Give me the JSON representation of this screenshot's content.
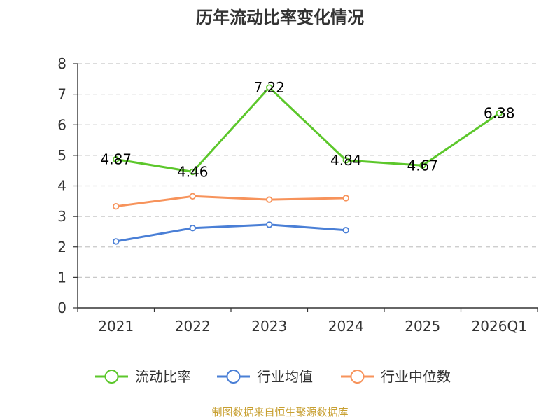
{
  "chart_data": {
    "type": "line",
    "title": "历年流动比率变化情况",
    "categories": [
      "2021",
      "2022",
      "2023",
      "2024",
      "2025",
      "2026Q1"
    ],
    "ylim": [
      0,
      8
    ],
    "yticks": [
      0,
      1,
      2,
      3,
      4,
      5,
      6,
      7,
      8
    ],
    "grid": true,
    "legend_position": "bottom",
    "series": [
      {
        "name": "流动比率",
        "color": "#5cc72b",
        "values": [
          4.87,
          4.46,
          7.22,
          4.84,
          4.67,
          6.38
        ],
        "labels": [
          "4.87",
          "4.46",
          "7.22",
          "4.84",
          "4.67",
          "6.38"
        ],
        "show_labels": true
      },
      {
        "name": "行业均值",
        "color": "#4a7fd6",
        "values": [
          2.18,
          2.62,
          2.73,
          2.55,
          null,
          null
        ],
        "show_labels": false
      },
      {
        "name": "行业中位数",
        "color": "#f7935b",
        "values": [
          3.33,
          3.66,
          3.55,
          3.6,
          null,
          null
        ],
        "show_labels": false
      }
    ]
  },
  "source_text": "制图数据来自恒生聚源数据库",
  "source_color": "#c8a032"
}
